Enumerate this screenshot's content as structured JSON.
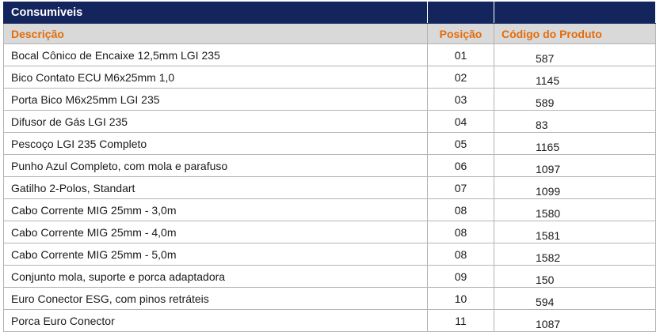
{
  "table": {
    "title": "Consumiveis",
    "columns": [
      "Descrição",
      "Posição",
      "Código do Produto"
    ],
    "rows": [
      {
        "descricao": "Bocal Cônico de Encaixe 12,5mm LGI 235",
        "posicao": "01",
        "codigo": "587"
      },
      {
        "descricao": "Bico Contato ECU M6x25mm 1,0",
        "posicao": "02",
        "codigo": "1145"
      },
      {
        "descricao": "Porta Bico M6x25mm LGI 235",
        "posicao": "03",
        "codigo": "589"
      },
      {
        "descricao": "Difusor de Gás LGI 235",
        "posicao": "04",
        "codigo": "83"
      },
      {
        "descricao": "Pescoço LGI 235 Completo",
        "posicao": "05",
        "codigo": "1165"
      },
      {
        "descricao": "Punho Azul Completo, com mola e parafuso",
        "posicao": "06",
        "codigo": "1097"
      },
      {
        "descricao": "Gatilho 2-Polos, Standart",
        "posicao": "07",
        "codigo": "1099"
      },
      {
        "descricao": "Cabo Corrente MIG 25mm - 3,0m",
        "posicao": "08",
        "codigo": "1580"
      },
      {
        "descricao": "Cabo Corrente MIG 25mm - 4,0m",
        "posicao": "08",
        "codigo": "1581"
      },
      {
        "descricao": "Cabo Corrente MIG 25mm - 5,0m",
        "posicao": "08",
        "codigo": "1582"
      },
      {
        "descricao": "Conjunto mola, suporte e porca adaptadora",
        "posicao": "09",
        "codigo": "150"
      },
      {
        "descricao": "Euro Conector ESG, com pinos retráteis",
        "posicao": "10",
        "codigo": "594"
      },
      {
        "descricao": "Porca Euro Conector",
        "posicao": "11",
        "codigo": "1087"
      }
    ]
  },
  "colors": {
    "title_bg": "#14255e",
    "header_bg": "#d9d9d9",
    "header_text": "#e46c0a"
  }
}
